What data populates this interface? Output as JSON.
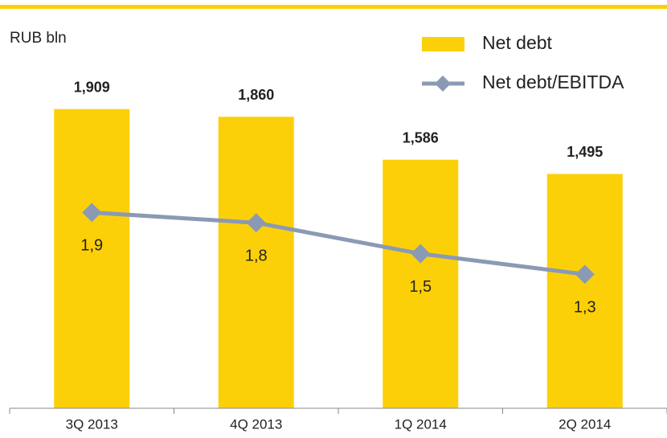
{
  "chart_data": {
    "type": "bar_line",
    "unit_label": "RUB bln",
    "categories": [
      "3Q 2013",
      "4Q 2013",
      "1Q 2014",
      "2Q 2014"
    ],
    "series": [
      {
        "name": "Net debt",
        "type": "bar",
        "color": "#fcd008",
        "values": [
          1909,
          1860,
          1586,
          1495
        ],
        "value_labels": [
          "1,909",
          "1,860",
          "1,586",
          "1,495"
        ]
      },
      {
        "name": "Net debt/EBITDA",
        "type": "line",
        "axis": "y2",
        "color": "#8a9ab5",
        "values": [
          1.9,
          1.8,
          1.5,
          1.3
        ],
        "value_labels": [
          "1,9",
          "1,8",
          "1,5",
          "1,3"
        ]
      }
    ],
    "ylim": [
      0,
      2400
    ],
    "y2lim": [
      0,
      3.65
    ],
    "legend": "top-right"
  }
}
